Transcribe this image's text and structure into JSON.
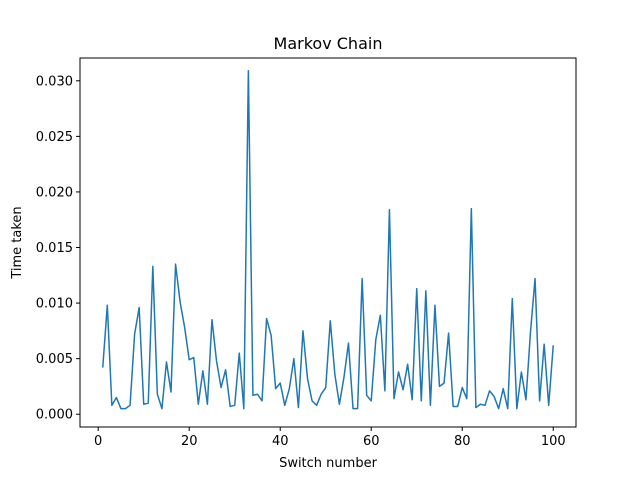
{
  "chart_data": {
    "type": "line",
    "title": "Markov Chain",
    "xlabel": "Switch number",
    "ylabel": "Time taken",
    "xlim": [
      -4,
      105
    ],
    "ylim": [
      -0.00115,
      0.03205
    ],
    "xticks": [
      0,
      20,
      40,
      60,
      80,
      100
    ],
    "xtick_labels": [
      "0",
      "20",
      "40",
      "60",
      "80",
      "100"
    ],
    "yticks": [
      0.0,
      0.005,
      0.01,
      0.015,
      0.02,
      0.025,
      0.03
    ],
    "ytick_labels": [
      "0.000",
      "0.005",
      "0.010",
      "0.015",
      "0.020",
      "0.025",
      "0.030"
    ],
    "grid": false,
    "series": [
      {
        "color": "#1f77b4",
        "x": [
          1,
          2,
          3,
          4,
          5,
          6,
          7,
          8,
          9,
          10,
          11,
          12,
          13,
          14,
          15,
          16,
          17,
          18,
          19,
          20,
          21,
          22,
          23,
          24,
          25,
          26,
          27,
          28,
          29,
          30,
          31,
          32,
          33,
          34,
          35,
          36,
          37,
          38,
          39,
          40,
          41,
          42,
          43,
          44,
          45,
          46,
          47,
          48,
          49,
          50,
          51,
          52,
          53,
          54,
          55,
          56,
          57,
          58,
          59,
          60,
          61,
          62,
          63,
          64,
          65,
          66,
          67,
          68,
          69,
          70,
          71,
          72,
          73,
          74,
          75,
          76,
          77,
          78,
          79,
          80,
          81,
          82,
          83,
          84,
          85,
          86,
          87,
          88,
          89,
          90,
          91,
          92,
          93,
          94,
          95,
          96,
          97,
          98,
          99,
          100
        ],
        "values": [
          0.0042,
          0.0098,
          0.0008,
          0.0015,
          0.0005,
          0.0005,
          0.0008,
          0.0072,
          0.0096,
          0.0009,
          0.001,
          0.0133,
          0.0018,
          0.0005,
          0.0047,
          0.002,
          0.0135,
          0.0101,
          0.0078,
          0.0049,
          0.0051,
          0.0009,
          0.0039,
          0.0009,
          0.0085,
          0.0048,
          0.0024,
          0.004,
          0.0007,
          0.0008,
          0.0055,
          0.0005,
          0.0309,
          0.0017,
          0.0018,
          0.0012,
          0.0086,
          0.0071,
          0.0023,
          0.0028,
          0.0008,
          0.0023,
          0.005,
          0.0006,
          0.0075,
          0.0032,
          0.0012,
          0.0008,
          0.0018,
          0.0024,
          0.0084,
          0.0036,
          0.0009,
          0.0033,
          0.0064,
          0.0005,
          0.0005,
          0.0122,
          0.0017,
          0.0012,
          0.0067,
          0.0089,
          0.0021,
          0.0184,
          0.0014,
          0.0038,
          0.0022,
          0.0045,
          0.0013,
          0.0113,
          0.0012,
          0.0111,
          0.0008,
          0.0098,
          0.0025,
          0.0028,
          0.0073,
          0.0007,
          0.0007,
          0.0024,
          0.0014,
          0.0185,
          0.0006,
          0.0009,
          0.0008,
          0.0021,
          0.0016,
          0.0005,
          0.0023,
          0.0005,
          0.0104,
          0.0005,
          0.0038,
          0.0013,
          0.0074,
          0.0122,
          0.0012,
          0.0063,
          0.0008,
          0.0062
        ]
      }
    ]
  }
}
